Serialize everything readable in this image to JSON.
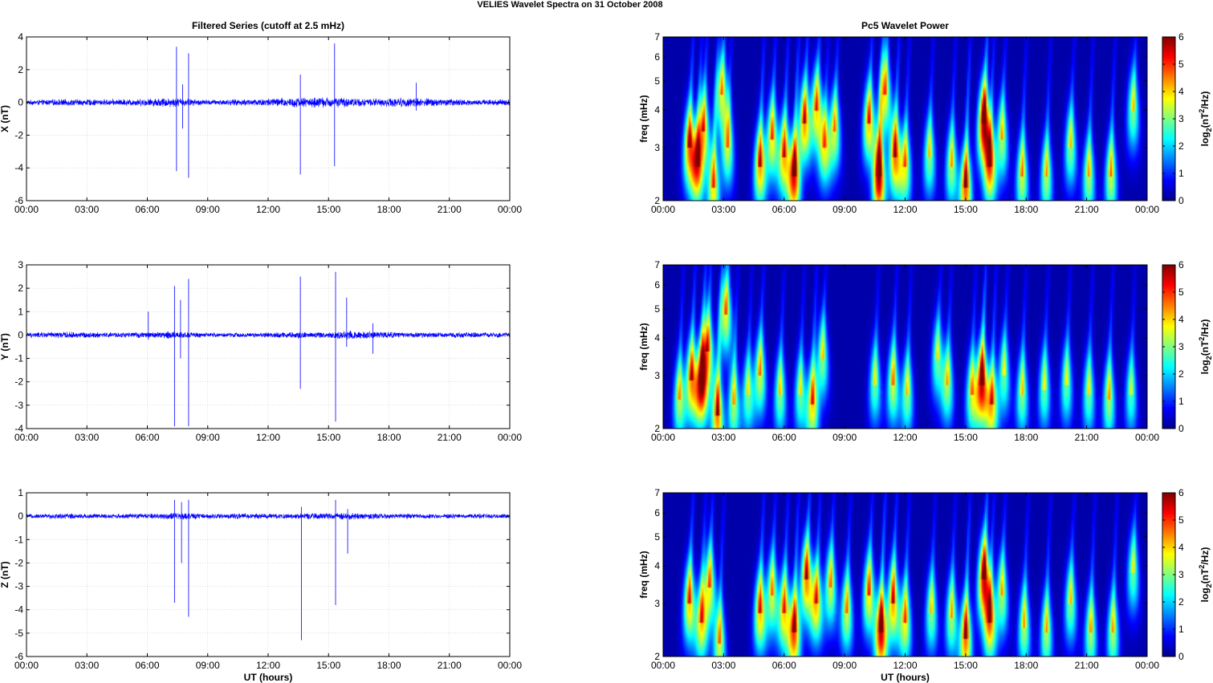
{
  "figure_title": "VELIES Wavelet Spectra on 31 October   2008",
  "chart_data": [
    {
      "type": "line",
      "title": "Filtered Series (cutoff at 2.5 mHz)",
      "ylabel": "X (nT)",
      "xlabel": "",
      "x_ticks": [
        "00:00",
        "03:00",
        "06:00",
        "09:00",
        "12:00",
        "15:00",
        "18:00",
        "21:00",
        "00:00"
      ],
      "xlim_hours": [
        0,
        24
      ],
      "ylim": [
        -6,
        4
      ],
      "y_ticks": [
        -6,
        -4,
        -2,
        0,
        2,
        4
      ],
      "series_color": "#0000ff",
      "grid": true,
      "noise_amplitude": 0.25,
      "noise_envelope": [
        [
          0,
          0.6
        ],
        [
          2,
          0.9
        ],
        [
          4,
          0.8
        ],
        [
          6,
          1.0
        ],
        [
          7,
          1.3
        ],
        [
          9,
          0.7
        ],
        [
          11,
          0.9
        ],
        [
          13,
          1.3
        ],
        [
          15,
          1.4
        ],
        [
          17,
          1.0
        ],
        [
          19,
          1.3
        ],
        [
          20,
          1.1
        ],
        [
          22,
          0.8
        ],
        [
          24,
          0.8
        ]
      ],
      "spikes": [
        [
          7.45,
          3.4,
          -4.2
        ],
        [
          7.75,
          1.1,
          -1.6
        ],
        [
          8.05,
          3.0,
          -4.6
        ],
        [
          13.6,
          1.7,
          -4.4
        ],
        [
          15.3,
          3.6,
          -3.9
        ],
        [
          19.35,
          1.2,
          -0.5
        ]
      ]
    },
    {
      "type": "line",
      "ylabel": "Y (nT)",
      "xlabel": "",
      "x_ticks": [
        "00:00",
        "03:00",
        "06:00",
        "09:00",
        "12:00",
        "15:00",
        "18:00",
        "21:00",
        "00:00"
      ],
      "xlim_hours": [
        0,
        24
      ],
      "ylim": [
        -4,
        3
      ],
      "y_ticks": [
        -4,
        -3,
        -2,
        -1,
        0,
        1,
        2,
        3
      ],
      "series_color": "#0000ff",
      "grid": true,
      "noise_amplitude": 0.15,
      "noise_envelope": [
        [
          0,
          0.8
        ],
        [
          2,
          1.0
        ],
        [
          4,
          0.8
        ],
        [
          6,
          0.9
        ],
        [
          7,
          1.2
        ],
        [
          9,
          0.7
        ],
        [
          11,
          0.7
        ],
        [
          13,
          1.0
        ],
        [
          15,
          0.9
        ],
        [
          16,
          1.6
        ],
        [
          17,
          1.2
        ],
        [
          19,
          0.8
        ],
        [
          22,
          0.8
        ],
        [
          24,
          0.8
        ]
      ],
      "spikes": [
        [
          6.05,
          1.0,
          -0.2
        ],
        [
          7.35,
          2.1,
          -3.9
        ],
        [
          7.65,
          1.5,
          -1.0
        ],
        [
          8.05,
          2.4,
          -3.9
        ],
        [
          13.6,
          2.5,
          -2.3
        ],
        [
          15.35,
          2.7,
          -3.7
        ],
        [
          15.9,
          1.6,
          -0.5
        ],
        [
          17.2,
          0.5,
          -0.8
        ]
      ]
    },
    {
      "type": "line",
      "ylabel": "Z (nT)",
      "xlabel": "UT (hours)",
      "x_ticks": [
        "00:00",
        "03:00",
        "06:00",
        "09:00",
        "12:00",
        "15:00",
        "18:00",
        "21:00",
        "00:00"
      ],
      "xlim_hours": [
        0,
        24
      ],
      "ylim": [
        -6,
        1
      ],
      "y_ticks": [
        -6,
        -5,
        -4,
        -3,
        -2,
        -1,
        0,
        1
      ],
      "series_color": "#0000ff",
      "grid": true,
      "noise_amplitude": 0.12,
      "noise_envelope": [
        [
          0,
          0.8
        ],
        [
          2,
          1.1
        ],
        [
          4,
          0.9
        ],
        [
          6,
          1.0
        ],
        [
          7.5,
          1.4
        ],
        [
          9,
          1.0
        ],
        [
          11,
          1.1
        ],
        [
          13,
          1.0
        ],
        [
          15,
          1.2
        ],
        [
          16,
          1.3
        ],
        [
          18,
          1.0
        ],
        [
          20,
          1.0
        ],
        [
          24,
          0.8
        ]
      ],
      "spikes": [
        [
          7.35,
          0.7,
          -3.7
        ],
        [
          7.7,
          0.6,
          -2.0
        ],
        [
          8.05,
          0.7,
          -4.3
        ],
        [
          13.65,
          0.4,
          -5.3
        ],
        [
          15.35,
          0.7,
          -3.8
        ],
        [
          15.95,
          0.3,
          -1.6
        ]
      ]
    },
    {
      "type": "heatmap",
      "title": "Pc5 Wavelet Power",
      "ylabel": "freq (mHz)",
      "xlabel": "",
      "x_ticks": [
        "00:00",
        "03:00",
        "06:00",
        "09:00",
        "12:00",
        "15:00",
        "18:00",
        "21:00",
        "00:00"
      ],
      "xlim_hours": [
        0,
        24
      ],
      "y_scale": "log",
      "ylim": [
        2,
        7
      ],
      "y_ticks": [
        2,
        3,
        4,
        5,
        6,
        7
      ],
      "colorbar_label": "log2(nT^2/Hz)",
      "colorbar_ticks": [
        0,
        1,
        2,
        3,
        4,
        5,
        6
      ],
      "clim": [
        0,
        6
      ],
      "blobs": [
        [
          1.3,
          3,
          4.2
        ],
        [
          1.7,
          2.6,
          3.8
        ],
        [
          2.0,
          3.4,
          3.6
        ],
        [
          2.5,
          2.2,
          3.5
        ],
        [
          2.9,
          4.5,
          3.2
        ],
        [
          3.2,
          3.0,
          3.0
        ],
        [
          4.8,
          2.6,
          4.0
        ],
        [
          5.4,
          3.2,
          3.5
        ],
        [
          6.0,
          2.8,
          3.8
        ],
        [
          6.5,
          2.4,
          4.8
        ],
        [
          7.0,
          3.6,
          4.0
        ],
        [
          7.6,
          4.0,
          3.6
        ],
        [
          8.0,
          3.0,
          3.0
        ],
        [
          8.5,
          3.4,
          3.2
        ],
        [
          10.2,
          3.6,
          3.8
        ],
        [
          10.7,
          2.4,
          5.6
        ],
        [
          11.0,
          4.5,
          3.5
        ],
        [
          11.5,
          2.8,
          4.2
        ],
        [
          12.0,
          2.6,
          3.2
        ],
        [
          13.2,
          2.8,
          2.8
        ],
        [
          14.3,
          2.6,
          3.0
        ],
        [
          15.0,
          2.2,
          4.5
        ],
        [
          15.9,
          3.6,
          5.4
        ],
        [
          16.2,
          2.6,
          4.0
        ],
        [
          16.8,
          3.2,
          3.0
        ],
        [
          17.8,
          2.4,
          3.2
        ],
        [
          19.0,
          2.4,
          3.0
        ],
        [
          20.2,
          3.0,
          2.8
        ],
        [
          21.1,
          2.4,
          3.0
        ],
        [
          22.2,
          2.4,
          3.2
        ],
        [
          23.3,
          4.0,
          2.8
        ]
      ]
    },
    {
      "type": "heatmap",
      "ylabel": "freq (mHz)",
      "xlabel": "",
      "x_ticks": [
        "00:00",
        "03:00",
        "06:00",
        "09:00",
        "12:00",
        "15:00",
        "18:00",
        "21:00",
        "00:00"
      ],
      "xlim_hours": [
        0,
        24
      ],
      "y_scale": "log",
      "ylim": [
        2,
        7
      ],
      "y_ticks": [
        2,
        3,
        4,
        5,
        6,
        7
      ],
      "colorbar_label": "log2(nT^2/Hz)",
      "colorbar_ticks": [
        0,
        1,
        2,
        3,
        4,
        5,
        6
      ],
      "clim": [
        0,
        6
      ],
      "blobs": [
        [
          0.8,
          2.5,
          3.0
        ],
        [
          1.4,
          2.9,
          4.0
        ],
        [
          1.9,
          2.8,
          5.0
        ],
        [
          2.2,
          3.6,
          3.8
        ],
        [
          2.7,
          2.2,
          4.2
        ],
        [
          3.1,
          4.8,
          3.4
        ],
        [
          3.5,
          2.4,
          3.0
        ],
        [
          4.2,
          2.6,
          2.6
        ],
        [
          4.8,
          3.0,
          3.2
        ],
        [
          5.8,
          2.6,
          2.8
        ],
        [
          6.8,
          2.6,
          2.6
        ],
        [
          7.4,
          2.4,
          3.6
        ],
        [
          7.9,
          3.4,
          2.8
        ],
        [
          10.5,
          2.8,
          2.6
        ],
        [
          11.4,
          2.8,
          3.2
        ],
        [
          12.1,
          2.6,
          2.8
        ],
        [
          13.6,
          3.4,
          2.6
        ],
        [
          14.1,
          2.8,
          2.8
        ],
        [
          15.3,
          2.6,
          3.0
        ],
        [
          15.8,
          2.8,
          5.2
        ],
        [
          16.3,
          2.4,
          3.6
        ],
        [
          16.9,
          3.0,
          2.6
        ],
        [
          17.8,
          2.6,
          2.8
        ],
        [
          18.9,
          2.7,
          2.6
        ],
        [
          20.0,
          2.8,
          2.6
        ],
        [
          21.1,
          2.6,
          2.6
        ],
        [
          22.1,
          2.5,
          3.0
        ],
        [
          23.2,
          2.6,
          2.4
        ]
      ]
    },
    {
      "type": "heatmap",
      "ylabel": "freq (mHz)",
      "xlabel": "UT (hours)",
      "x_ticks": [
        "00:00",
        "03:00",
        "06:00",
        "09:00",
        "12:00",
        "15:00",
        "18:00",
        "21:00",
        "00:00"
      ],
      "xlim_hours": [
        0,
        24
      ],
      "y_scale": "log",
      "ylim": [
        2,
        7
      ],
      "y_ticks": [
        2,
        3,
        4,
        5,
        6,
        7
      ],
      "colorbar_label": "log2(nT^2/Hz)",
      "colorbar_ticks": [
        0,
        1,
        2,
        3,
        4,
        5,
        6
      ],
      "clim": [
        0,
        6
      ],
      "blobs": [
        [
          1.3,
          3.0,
          3.8
        ],
        [
          1.9,
          2.6,
          3.4
        ],
        [
          2.3,
          3.4,
          3.4
        ],
        [
          2.8,
          2.2,
          3.2
        ],
        [
          4.8,
          2.8,
          3.8
        ],
        [
          5.4,
          3.2,
          3.2
        ],
        [
          6.0,
          2.8,
          3.6
        ],
        [
          6.5,
          2.4,
          4.4
        ],
        [
          7.1,
          3.6,
          4.2
        ],
        [
          7.6,
          3.0,
          3.6
        ],
        [
          8.3,
          3.4,
          3.2
        ],
        [
          9.1,
          2.8,
          3.2
        ],
        [
          10.2,
          3.2,
          3.6
        ],
        [
          10.8,
          2.4,
          5.2
        ],
        [
          11.4,
          3.0,
          4.0
        ],
        [
          12.0,
          2.6,
          3.4
        ],
        [
          13.3,
          2.8,
          2.8
        ],
        [
          14.3,
          2.7,
          3.0
        ],
        [
          15.0,
          2.3,
          4.4
        ],
        [
          15.9,
          3.6,
          5.0
        ],
        [
          16.2,
          2.6,
          3.8
        ],
        [
          16.8,
          3.2,
          3.0
        ],
        [
          17.9,
          2.5,
          3.0
        ],
        [
          19.0,
          2.4,
          3.0
        ],
        [
          20.2,
          3.0,
          2.8
        ],
        [
          21.2,
          2.4,
          3.0
        ],
        [
          22.3,
          2.4,
          3.0
        ],
        [
          23.3,
          3.8,
          2.6
        ]
      ]
    }
  ]
}
